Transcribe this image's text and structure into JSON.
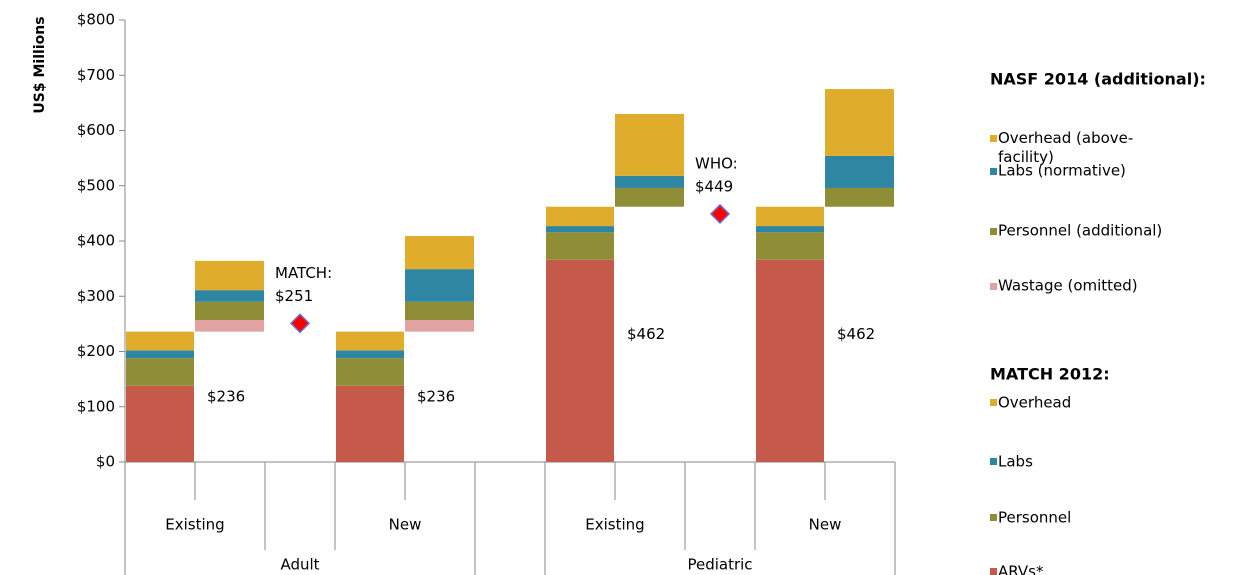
{
  "chart_data": {
    "type": "stacked_bar",
    "ylabel": "US$ Millions",
    "ylim": [
      0,
      800
    ],
    "yticks": [
      {
        "value": 0,
        "label": "$0"
      },
      {
        "value": 100,
        "label": "$100"
      },
      {
        "value": 200,
        "label": "$200"
      },
      {
        "value": 300,
        "label": "$300"
      },
      {
        "value": 400,
        "label": "$400"
      },
      {
        "value": 500,
        "label": "$500"
      },
      {
        "value": 600,
        "label": "$600"
      },
      {
        "value": 700,
        "label": "$700"
      },
      {
        "value": 800,
        "label": "$800"
      }
    ],
    "groups": [
      {
        "name": "Adult",
        "categories": [
          "Existing",
          "New"
        ]
      },
      {
        "name": "Pediatric",
        "categories": [
          "Existing",
          "New"
        ]
      }
    ],
    "match": {
      "legend_title": "MATCH 2012:",
      "series": [
        {
          "name": "ARVs*",
          "color": "#c55a4a",
          "values": [
            138,
            138,
            366,
            366
          ]
        },
        {
          "name": "Personnel",
          "color": "#8f8e36",
          "values": [
            50,
            50,
            50,
            50
          ]
        },
        {
          "name": "Labs",
          "color": "#2f86a2",
          "values": [
            14,
            14,
            11,
            11
          ]
        },
        {
          "name": "Overhead",
          "color": "#e0ac2b",
          "values": [
            34,
            34,
            35,
            35
          ]
        }
      ],
      "totals": [
        236,
        236,
        462,
        462
      ],
      "total_labels": [
        "$236",
        "$236",
        "$462",
        "$462"
      ]
    },
    "nasf": {
      "legend_title": "NASF 2014 (additional):",
      "series": [
        {
          "name": "Wastage (omitted)",
          "color": "#e3a2a2",
          "values": [
            21,
            21,
            null,
            null
          ]
        },
        {
          "name": "Personnel (additional)",
          "color": "#8f8e36",
          "values": [
            33,
            33,
            34,
            34
          ]
        },
        {
          "name": "Labs (normative)",
          "color": "#2f86a2",
          "values": [
            21,
            59,
            22,
            58
          ]
        },
        {
          "name": "Overhead (above-facility)",
          "color": "#e0ac2b",
          "values": [
            53,
            60,
            112,
            121
          ]
        }
      ]
    },
    "benchmarks": {
      "labels": [
        "MATCH:",
        "WHO:"
      ],
      "values": [
        251,
        449
      ],
      "value_labels": [
        "$251",
        "$449"
      ],
      "color": "#ff0000"
    }
  }
}
